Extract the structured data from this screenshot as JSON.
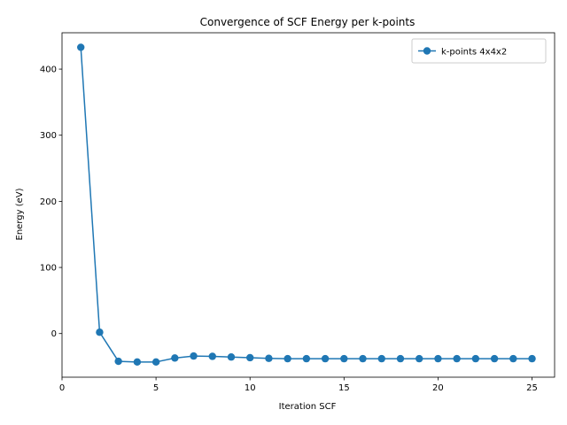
{
  "chart_data": {
    "type": "line",
    "title": "Convergence of SCF Energy per k-points",
    "xlabel": "Iteration SCF",
    "ylabel": "Energy (eV)",
    "xlim": [
      0,
      26.2
    ],
    "ylim": [
      -66,
      455
    ],
    "xticks": [
      0,
      5,
      10,
      15,
      20,
      25
    ],
    "yticks": [
      0,
      100,
      200,
      300,
      400
    ],
    "grid": false,
    "legend_position": "top-right",
    "series": [
      {
        "name": "k-points 4x4x2",
        "color": "#1f77b4",
        "marker": "circle",
        "x": [
          1,
          2,
          3,
          4,
          5,
          6,
          7,
          8,
          9,
          10,
          11,
          12,
          13,
          14,
          15,
          16,
          17,
          18,
          19,
          20,
          21,
          22,
          23,
          24,
          25
        ],
        "y": [
          433,
          2,
          -42,
          -43,
          -43,
          -37,
          -34,
          -34.5,
          -35.5,
          -36.5,
          -37.5,
          -38,
          -38,
          -38,
          -38,
          -38,
          -38,
          -38,
          -38,
          -38,
          -38,
          -38,
          -38,
          -38,
          -38
        ]
      }
    ]
  }
}
